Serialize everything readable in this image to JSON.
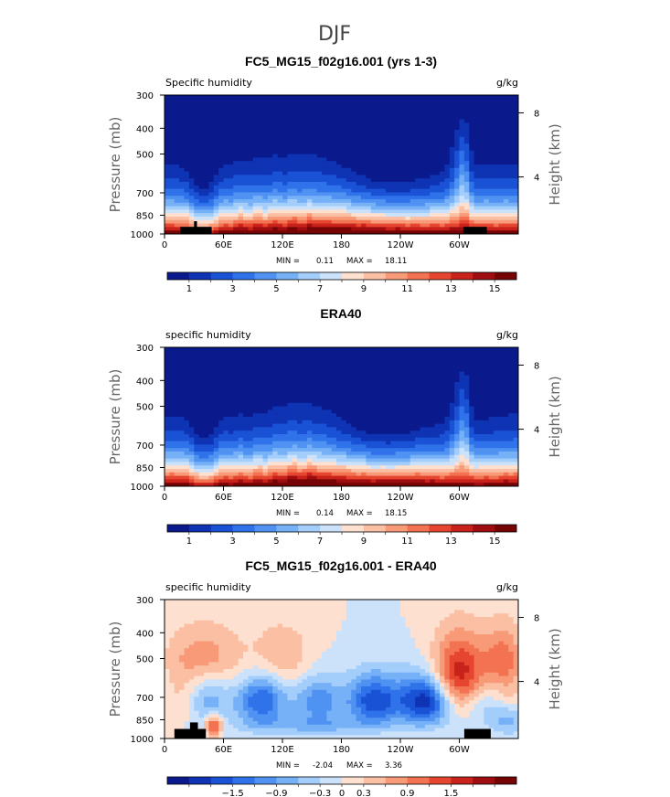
{
  "figure": {
    "title": "DJF"
  },
  "colorbar_colors_pos": [
    "#0a1a8c",
    "#0e33b3",
    "#1a52d6",
    "#2f72ea",
    "#4f92f2",
    "#76b0f7",
    "#a3cdfb",
    "#cce2fb",
    "#fde0cf",
    "#fbbfa3",
    "#f89a78",
    "#f37251",
    "#e64530",
    "#c8221a",
    "#9e0d10",
    "#760404"
  ],
  "colorbar_colors_diff": [
    "#0a1a8c",
    "#0e33b3",
    "#1a52d6",
    "#2f72ea",
    "#4f92f2",
    "#76b0f7",
    "#a3cdfb",
    "#cce2fb",
    "#fde0cf",
    "#fbbfa3",
    "#f89a78",
    "#f37251",
    "#e64530",
    "#c8221a",
    "#9e0d10",
    "#760404"
  ],
  "chart_data": [
    {
      "type": "heatmap",
      "title": "FC5_MG15_f02g16.001 (yrs 1-3)",
      "left_label": "Specific humidity",
      "units": "g/kg",
      "ylabel": "Pressure (mb)",
      "ylabel_right": "Height (km)",
      "x_ticks": [
        "0",
        "60E",
        "120E",
        "180",
        "120W",
        "60W"
      ],
      "y_ticks": [
        "300",
        "400",
        "500",
        "700",
        "850",
        "1000"
      ],
      "y_ticks_right": [
        "8",
        "4"
      ],
      "xlim": [
        0,
        360
      ],
      "ylim": [
        1000,
        300
      ],
      "min_label": "MIN =",
      "min_value": "0.11",
      "max_label": "MAX =",
      "max_value": "18.11",
      "colorbar_labels": [
        "1",
        "3",
        "5",
        "7",
        "9",
        "11",
        "13",
        "15"
      ],
      "levels": [
        0,
        1,
        2,
        3,
        4,
        5,
        6,
        7,
        8,
        9,
        10,
        11,
        12,
        13,
        14,
        15,
        16
      ],
      "kind": "model",
      "topography": [
        {
          "lon_start": 16,
          "lon_end": 48,
          "p_top": 940
        },
        {
          "lon_start": 30,
          "lon_end": 33,
          "p_top": 895
        },
        {
          "lon_start": 304,
          "lon_end": 328,
          "p_top": 940
        }
      ]
    },
    {
      "type": "heatmap",
      "title": "ERA40",
      "left_label": "specific humidity",
      "units": "g/kg",
      "ylabel": "Pressure (mb)",
      "ylabel_right": "Height (km)",
      "x_ticks": [
        "0",
        "60E",
        "120E",
        "180",
        "120W",
        "60W"
      ],
      "y_ticks": [
        "300",
        "400",
        "500",
        "700",
        "850",
        "1000"
      ],
      "y_ticks_right": [
        "8",
        "4"
      ],
      "xlim": [
        0,
        360
      ],
      "ylim": [
        1000,
        300
      ],
      "min_label": "MIN =",
      "min_value": "0.14",
      "max_label": "MAX =",
      "max_value": "18.15",
      "colorbar_labels": [
        "1",
        "3",
        "5",
        "7",
        "9",
        "11",
        "13",
        "15"
      ],
      "levels": [
        0,
        1,
        2,
        3,
        4,
        5,
        6,
        7,
        8,
        9,
        10,
        11,
        12,
        13,
        14,
        15,
        16
      ],
      "kind": "obs",
      "topography": []
    },
    {
      "type": "heatmap",
      "title": "FC5_MG15_f02g16.001 - ERA40",
      "left_label": "specific humidity",
      "units": "g/kg",
      "ylabel": "Pressure (mb)",
      "ylabel_right": "Height (km)",
      "x_ticks": [
        "0",
        "60E",
        "120E",
        "180",
        "120W",
        "60W"
      ],
      "y_ticks": [
        "300",
        "400",
        "500",
        "700",
        "850",
        "1000"
      ],
      "y_ticks_right": [
        "8",
        "4"
      ],
      "xlim": [
        0,
        360
      ],
      "ylim": [
        1000,
        300
      ],
      "min_label": "MIN =",
      "min_value": "-2.04",
      "max_label": "MAX =",
      "max_value": "3.36",
      "colorbar_labels": [
        "−1.5",
        "−0.9",
        "−0.3",
        "0",
        "0.3",
        "0.9",
        "1.5"
      ],
      "levels": [
        -2.4,
        -2.1,
        -1.8,
        -1.5,
        -1.2,
        -0.9,
        -0.6,
        -0.3,
        0,
        0.3,
        0.6,
        0.9,
        1.2,
        1.5,
        1.8,
        2.1,
        2.4
      ],
      "kind": "diff",
      "topography": [
        {
          "lon_start": 10,
          "lon_end": 42,
          "p_top": 920
        },
        {
          "lon_start": 26,
          "lon_end": 34,
          "p_top": 870
        },
        {
          "lon_start": 305,
          "lon_end": 332,
          "p_top": 920
        }
      ]
    }
  ]
}
